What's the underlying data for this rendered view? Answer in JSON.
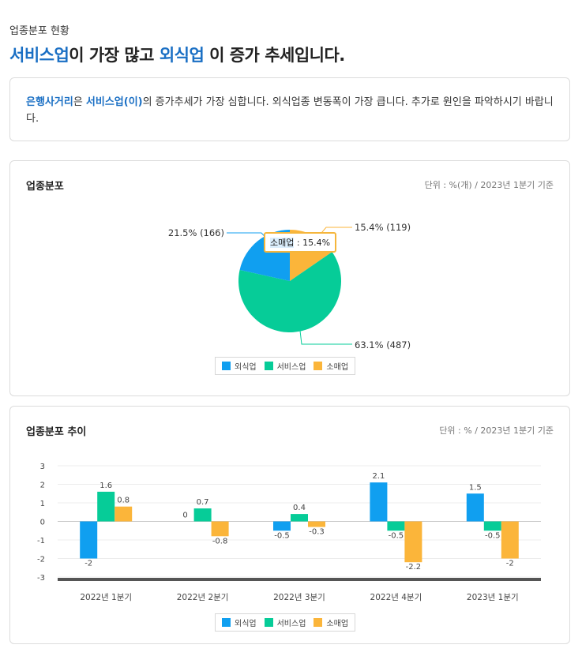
{
  "page": {
    "subtitle": "업종분포 현황",
    "headline": {
      "hl1": "서비스업",
      "mid": "이 가장 많고 ",
      "hl2": "외식업",
      "end": " 이 증가 추세입니다."
    }
  },
  "summary": {
    "hl1": "은행사거리",
    "t1": "은 ",
    "hl2": "서비스업(이)",
    "t2": "의 증가추세가 가장 심합니다. 외식업종 변동폭이 가장 큽니다. 추가로 원인을 파악하시기 바랍니다."
  },
  "colors": {
    "food": "#109ff0",
    "service": "#06cc98",
    "retail": "#fbb53a",
    "accent": "#1a6fc4"
  },
  "pie_card": {
    "title": "업종분포",
    "unit": "단위 : %(개) / 2023년 1분기 기준",
    "tooltip": {
      "label": "소매업",
      "value": " : 15.4%"
    }
  },
  "trend_card": {
    "title": "업종분포 추이",
    "unit": "단위 : % / 2023년 1분기 기준"
  },
  "chart_data": [
    {
      "type": "pie",
      "title": "업종분포",
      "slices": [
        {
          "name": "외식업",
          "percent": 21.5,
          "count": 166,
          "label": "21.5% (166)"
        },
        {
          "name": "서비스업",
          "percent": 63.1,
          "count": 487,
          "label": "63.1% (487)"
        },
        {
          "name": "소매업",
          "percent": 15.4,
          "count": 119,
          "label": "15.4% (119)"
        }
      ],
      "legend": [
        "외식업",
        "서비스업",
        "소매업"
      ]
    },
    {
      "type": "bar",
      "title": "업종분포 추이",
      "categories": [
        "2022년 1분기",
        "2022년 2분기",
        "2022년 3분기",
        "2022년 4분기",
        "2023년 1분기"
      ],
      "series": [
        {
          "name": "외식업",
          "values": [
            -2,
            0,
            -0.5,
            2.1,
            1.5
          ],
          "labels": [
            "-2",
            "0",
            "-0.5",
            "2.1",
            "1.5"
          ]
        },
        {
          "name": "서비스업",
          "values": [
            1.6,
            0.7,
            0.4,
            -0.5,
            -0.5
          ],
          "labels": [
            "1.6",
            "0.7",
            "0.4",
            "-0.5",
            "-0.5"
          ]
        },
        {
          "name": "소매업",
          "values": [
            0.8,
            -0.8,
            -0.3,
            -2.2,
            -2
          ],
          "labels": [
            "0.8",
            "-0.8",
            "-0.3",
            "-2.2",
            "-2"
          ]
        }
      ],
      "yticks": [
        "3",
        "2",
        "1",
        "0",
        "-1",
        "-2",
        "-3"
      ],
      "ylim": [
        -3,
        3
      ],
      "grid": true,
      "legend": [
        "외식업",
        "서비스업",
        "소매업"
      ]
    }
  ]
}
